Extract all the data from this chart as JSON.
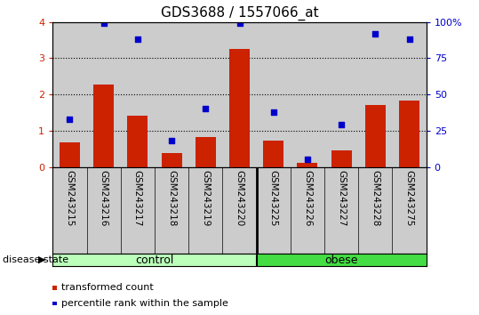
{
  "title": "GDS3688 / 1557066_at",
  "samples": [
    "GSM243215",
    "GSM243216",
    "GSM243217",
    "GSM243218",
    "GSM243219",
    "GSM243220",
    "GSM243225",
    "GSM243226",
    "GSM243227",
    "GSM243228",
    "GSM243275"
  ],
  "bar_values": [
    0.68,
    2.27,
    1.42,
    0.38,
    0.83,
    3.25,
    0.72,
    0.12,
    0.46,
    1.72,
    1.83
  ],
  "dot_values": [
    33,
    99,
    88,
    18,
    40,
    99,
    38,
    5,
    29,
    92,
    88
  ],
  "control_count": 6,
  "obese_count": 5,
  "ylim_left": [
    0,
    4
  ],
  "ylim_right": [
    0,
    100
  ],
  "yticks_left": [
    0,
    1,
    2,
    3,
    4
  ],
  "yticks_right": [
    0,
    25,
    50,
    75,
    100
  ],
  "ytick_labels_right": [
    "0",
    "25",
    "50",
    "75",
    "100%"
  ],
  "bar_color": "#CC2200",
  "dot_color": "#0000CC",
  "grid_color": "#000000",
  "control_label": "control",
  "obese_label": "obese",
  "disease_state_label": "disease state",
  "legend_bar_label": "transformed count",
  "legend_dot_label": "percentile rank within the sample",
  "control_bg": "#BBFFBB",
  "obese_bg": "#44DD44",
  "sample_bg": "#CCCCCC",
  "bg_white": "#FFFFFF",
  "title_fontsize": 11,
  "tick_fontsize": 8,
  "label_fontsize": 8
}
